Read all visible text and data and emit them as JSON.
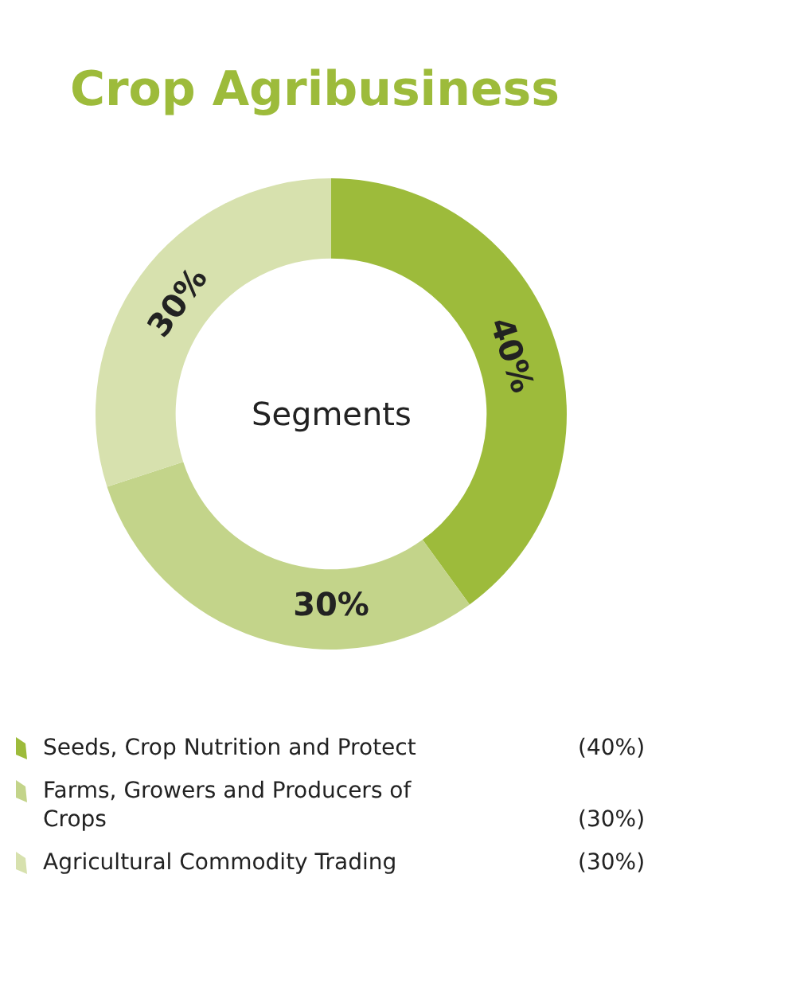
{
  "chart_data": {
    "type": "donut",
    "title": "Crop Agribusiness",
    "annotations": [
      "Segments",
      "(40%)",
      "(30%)",
      "(30%)"
    ],
    "value_labels": [
      "40%",
      "30%",
      "30%"
    ],
    "categories": [
      "Seeds, Crop Nutrition and Protect",
      "Farms, Growers and Producers of Crops",
      "Agricultural Commodity Trading"
    ],
    "values": [
      40,
      30,
      30
    ],
    "colors": [
      "#9dbb3b",
      "#c3d48a",
      "#d7e1ae"
    ],
    "legend": "bottom"
  }
}
